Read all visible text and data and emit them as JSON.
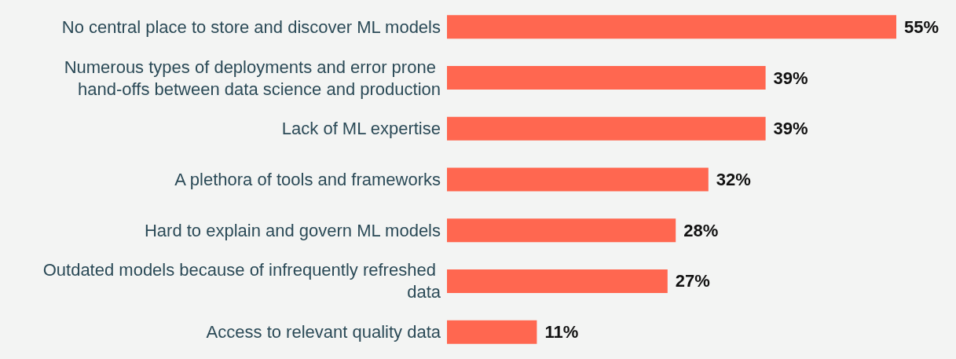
{
  "chart_data": {
    "type": "bar",
    "orientation": "horizontal",
    "categories": [
      "No central place to store and discover ML models",
      "Numerous types of deployments and error prone hand-offs between data science and production",
      "Lack of ML expertise",
      "A plethora of tools and frameworks",
      "Hard to explain and govern ML models",
      "Outdated models because of infrequently refreshed data",
      "Access to relevant quality data"
    ],
    "values": [
      55,
      39,
      39,
      32,
      28,
      27,
      11
    ],
    "value_labels": [
      "55%",
      "39%",
      "39%",
      "32%",
      "28%",
      "27%",
      "11%"
    ],
    "color": "#ff6750"
  }
}
